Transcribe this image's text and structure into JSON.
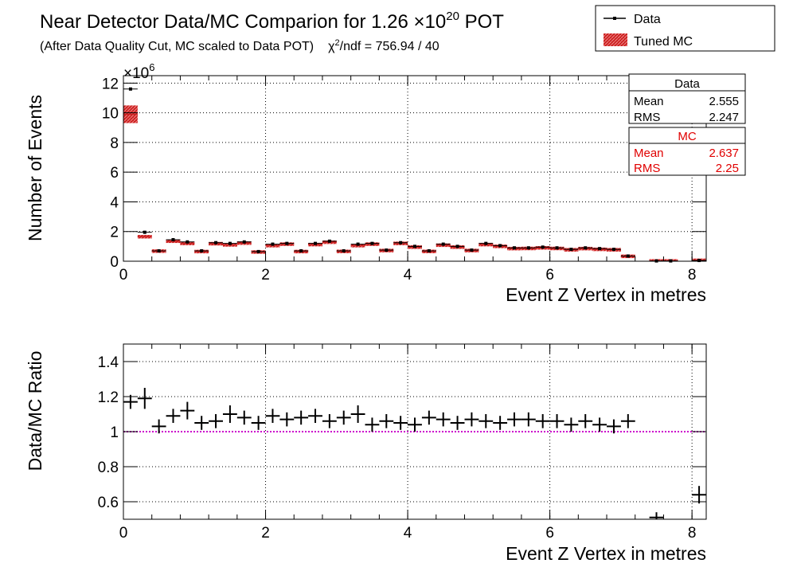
{
  "title": {
    "main": "Near Detector Data/MC Comparion for 1.26 ",
    "times": "×10",
    "exp": "20",
    "suffix": " POT",
    "sub1": "(After Data Quality Cut, MC scaled to Data POT)",
    "chi": "χ",
    "chi_exp": "2",
    "sub2": "/ndf = 756.94 / 40"
  },
  "legend": {
    "data_label": "Data",
    "mc_label": "Tuned MC"
  },
  "stats_data": {
    "title": "Data",
    "mean_label": "Mean",
    "mean_value": "2.555",
    "rms_label": "RMS",
    "rms_value": "2.247"
  },
  "stats_mc": {
    "title": "MC",
    "mean_label": "Mean",
    "mean_value": "2.637",
    "rms_label": "RMS",
    "rms_value": "2.25"
  },
  "colors": {
    "data": "#000000",
    "mc_fill": "#cc2020",
    "mc_hatch": "#e06060",
    "ratio_line": "#cc00cc"
  },
  "chart_data": [
    {
      "type": "bar",
      "name": "top",
      "xlabel": "Event Z Vertex in metres",
      "ylabel": "Number of Events",
      "multiplier": "×10",
      "multiplier_exp": "6",
      "xlim": [
        0,
        8.2
      ],
      "ylim": [
        0,
        12.5
      ],
      "xticks": [
        0,
        2,
        4,
        6,
        8
      ],
      "yticks": [
        0,
        2,
        4,
        6,
        8,
        10,
        12
      ],
      "grid": true,
      "legend": "top-right",
      "bin_width": 0.2,
      "x": [
        0.1,
        0.3,
        0.5,
        0.7,
        0.9,
        1.1,
        1.3,
        1.5,
        1.7,
        1.9,
        2.1,
        2.3,
        2.5,
        2.7,
        2.9,
        3.1,
        3.3,
        3.5,
        3.7,
        3.9,
        4.1,
        4.3,
        4.5,
        4.7,
        4.9,
        5.1,
        5.3,
        5.5,
        5.7,
        5.9,
        6.1,
        6.3,
        6.5,
        6.7,
        6.9,
        7.1,
        7.5,
        7.7,
        8.1
      ],
      "series": [
        {
          "name": "Data",
          "values": [
            11.6,
            1.95,
            0.7,
            1.45,
            1.3,
            0.7,
            1.25,
            1.2,
            1.3,
            0.65,
            1.15,
            1.2,
            0.7,
            1.2,
            1.35,
            0.7,
            1.15,
            1.2,
            0.75,
            1.25,
            1.0,
            0.7,
            1.15,
            1.0,
            0.75,
            1.2,
            1.05,
            0.9,
            0.9,
            0.95,
            0.9,
            0.8,
            0.9,
            0.85,
            0.8,
            0.35,
            0.02,
            0.02,
            0.05
          ]
        },
        {
          "name": "Tuned MC",
          "values": [
            9.9,
            1.65,
            0.68,
            1.35,
            1.2,
            0.65,
            1.18,
            1.1,
            1.22,
            0.62,
            1.05,
            1.15,
            0.65,
            1.12,
            1.28,
            0.66,
            1.05,
            1.15,
            0.72,
            1.2,
            0.95,
            0.66,
            1.08,
            0.95,
            0.72,
            1.12,
            1.0,
            0.85,
            0.86,
            0.9,
            0.86,
            0.77,
            0.85,
            0.8,
            0.77,
            0.33,
            0.02,
            0.02,
            0.06
          ]
        }
      ]
    },
    {
      "type": "scatter",
      "name": "ratio",
      "xlabel": "Event Z Vertex in metres",
      "ylabel": "Data/MC Ratio",
      "xlim": [
        0,
        8.2
      ],
      "ylim": [
        0.5,
        1.5
      ],
      "xticks": [
        0,
        2,
        4,
        6,
        8
      ],
      "yticks": [
        0.6,
        0.8,
        1,
        1.2,
        1.4
      ],
      "grid": true,
      "reference_line": 1,
      "x": [
        0.1,
        0.3,
        0.5,
        0.7,
        0.9,
        1.1,
        1.3,
        1.5,
        1.7,
        1.9,
        2.1,
        2.3,
        2.5,
        2.7,
        2.9,
        3.1,
        3.3,
        3.5,
        3.7,
        3.9,
        4.1,
        4.3,
        4.5,
        4.7,
        4.9,
        5.1,
        5.3,
        5.5,
        5.7,
        5.9,
        6.1,
        6.3,
        6.5,
        6.7,
        6.9,
        7.1,
        7.5,
        8.1
      ],
      "values": [
        1.17,
        1.19,
        1.03,
        1.09,
        1.12,
        1.05,
        1.06,
        1.1,
        1.08,
        1.05,
        1.09,
        1.07,
        1.08,
        1.09,
        1.06,
        1.08,
        1.1,
        1.04,
        1.06,
        1.05,
        1.04,
        1.08,
        1.07,
        1.05,
        1.07,
        1.06,
        1.05,
        1.07,
        1.07,
        1.06,
        1.06,
        1.04,
        1.06,
        1.04,
        1.03,
        1.06,
        0.51,
        0.64
      ],
      "errors": [
        0.04,
        0.06,
        0.04,
        0.04,
        0.05,
        0.04,
        0.04,
        0.05,
        0.04,
        0.04,
        0.04,
        0.04,
        0.04,
        0.04,
        0.04,
        0.04,
        0.05,
        0.04,
        0.04,
        0.04,
        0.04,
        0.04,
        0.04,
        0.04,
        0.04,
        0.04,
        0.04,
        0.04,
        0.04,
        0.04,
        0.04,
        0.04,
        0.04,
        0.04,
        0.04,
        0.04,
        0.03,
        0.05
      ]
    }
  ]
}
